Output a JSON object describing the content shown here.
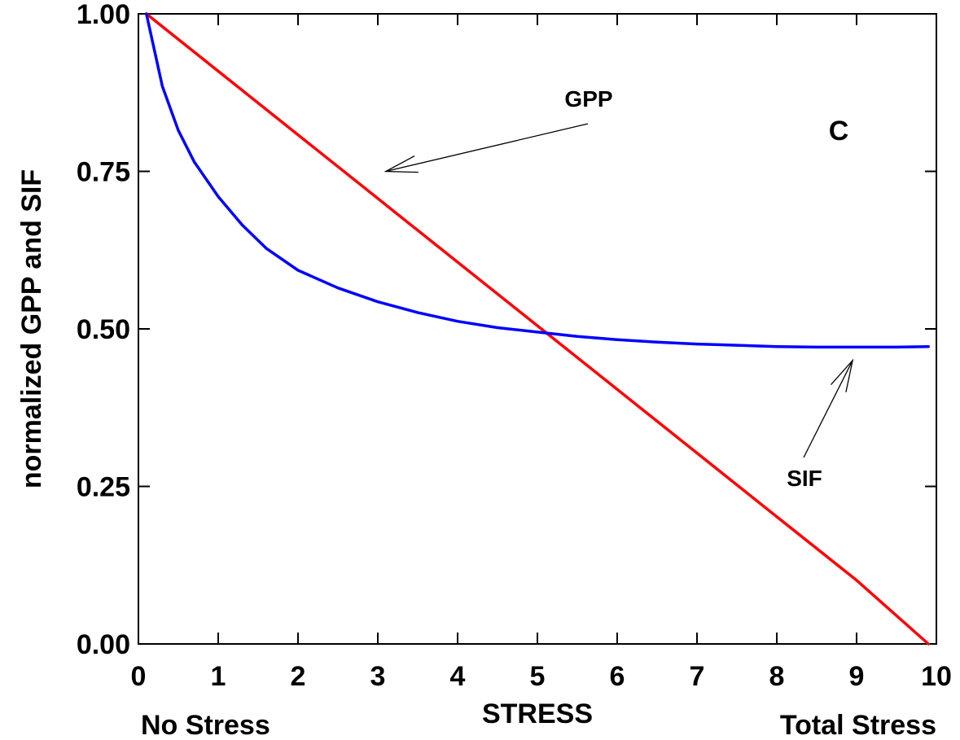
{
  "chart_data": {
    "type": "line",
    "panel_label": "C",
    "xlabel": "STRESS",
    "ylabel": "normalized GPP and SIF",
    "x_end_labels": {
      "left": "No Stress",
      "right": "Total Stress"
    },
    "xlim": [
      0,
      10
    ],
    "ylim": [
      0,
      1
    ],
    "x_ticks": [
      "0",
      "1",
      "2",
      "3",
      "4",
      "5",
      "6",
      "7",
      "8",
      "9",
      "10"
    ],
    "y_ticks": [
      "0.00",
      "0.25",
      "0.50",
      "0.75",
      "1.00"
    ],
    "grid": false,
    "series": [
      {
        "name": "GPP",
        "color": "#ff0000",
        "x": [
          0.1,
          1,
          2,
          3,
          4,
          5,
          6,
          7,
          8,
          9,
          9.9
        ],
        "y": [
          1.0,
          0.909,
          0.808,
          0.707,
          0.606,
          0.505,
          0.404,
          0.303,
          0.202,
          0.101,
          0.0
        ]
      },
      {
        "name": "SIF",
        "color": "#0000ff",
        "x": [
          0.1,
          0.3,
          0.5,
          0.7,
          1.0,
          1.3,
          1.6,
          2.0,
          2.5,
          3.0,
          3.5,
          4.0,
          4.5,
          5.0,
          5.5,
          6.0,
          6.5,
          7.0,
          7.5,
          8.0,
          8.5,
          9.0,
          9.5,
          9.9
        ],
        "y": [
          1.0,
          0.885,
          0.815,
          0.765,
          0.71,
          0.665,
          0.628,
          0.593,
          0.565,
          0.543,
          0.526,
          0.512,
          0.502,
          0.495,
          0.488,
          0.483,
          0.479,
          0.476,
          0.474,
          0.472,
          0.471,
          0.471,
          0.471,
          0.472
        ]
      }
    ],
    "annotations": [
      {
        "text": "GPP",
        "series": "GPP",
        "arrow_to": [
          3.1,
          0.75
        ]
      },
      {
        "text": "SIF",
        "series": "SIF",
        "arrow_to": [
          8.95,
          0.45
        ]
      }
    ]
  }
}
